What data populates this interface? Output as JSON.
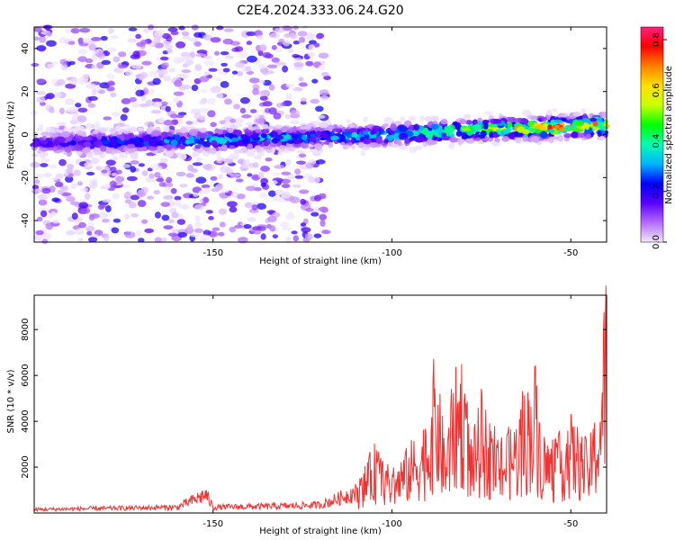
{
  "title": "C2E4.2024.333.06.24.G20",
  "chart_data": [
    {
      "type": "heatmap",
      "xlabel": "Height of straight line (km)",
      "ylabel": "Frequency (Hz)",
      "xlim": [
        -200,
        -40
      ],
      "ylim": [
        -50,
        50
      ],
      "x_ticks": [
        -150,
        -100,
        -50
      ],
      "y_ticks": [
        -40,
        -20,
        0,
        20,
        40
      ],
      "colorbar": {
        "label": "Normalized spectral amplitude",
        "range": [
          0,
          0.85
        ],
        "ticks": [
          0.0,
          0.2,
          0.4,
          0.6,
          0.8
        ],
        "colors": [
          "#f2e8ff",
          "#b36bff",
          "#5a00ff",
          "#0000ff",
          "#00b4ff",
          "#00ffb0",
          "#00ff00",
          "#c8ff00",
          "#ffe000",
          "#ff8000",
          "#ff0000",
          "#ff2080"
        ]
      },
      "ridge": {
        "x": [
          -200,
          -160,
          -140,
          -120,
          -100,
          -80,
          -60,
          -45
        ],
        "frequency": [
          -4,
          -3,
          -2,
          -1,
          0,
          2,
          3,
          4
        ],
        "peak_amplitude": [
          0.2,
          0.35,
          0.4,
          0.35,
          0.45,
          0.6,
          0.8,
          0.85
        ]
      },
      "noise_region_x": [
        -200,
        -118
      ]
    },
    {
      "type": "line",
      "xlabel": "Height of straight line (km)",
      "ylabel": "SNR (10 * v/v)",
      "xlim": [
        -200,
        -40
      ],
      "ylim": [
        0,
        9500
      ],
      "x_ticks": [
        -150,
        -100,
        -50
      ],
      "y_ticks": [
        2000,
        4000,
        6000,
        8000
      ],
      "color": "#ee3333",
      "series": [
        {
          "x": [
            -200,
            -180,
            -160,
            -152,
            -150,
            -130,
            -120,
            -110,
            -105,
            -100,
            -95,
            -90,
            -88,
            -85,
            -83,
            -80,
            -78,
            -75,
            -70,
            -65,
            -60,
            -58,
            -55,
            -50,
            -45,
            -42,
            -40
          ],
          "values": [
            150,
            200,
            250,
            800,
            250,
            300,
            350,
            900,
            2500,
            1500,
            2500,
            3500,
            5800,
            2500,
            4800,
            6000,
            2500,
            4200,
            2500,
            3500,
            5500,
            3000,
            2500,
            3500,
            2500,
            4300,
            9300
          ]
        }
      ]
    }
  ]
}
